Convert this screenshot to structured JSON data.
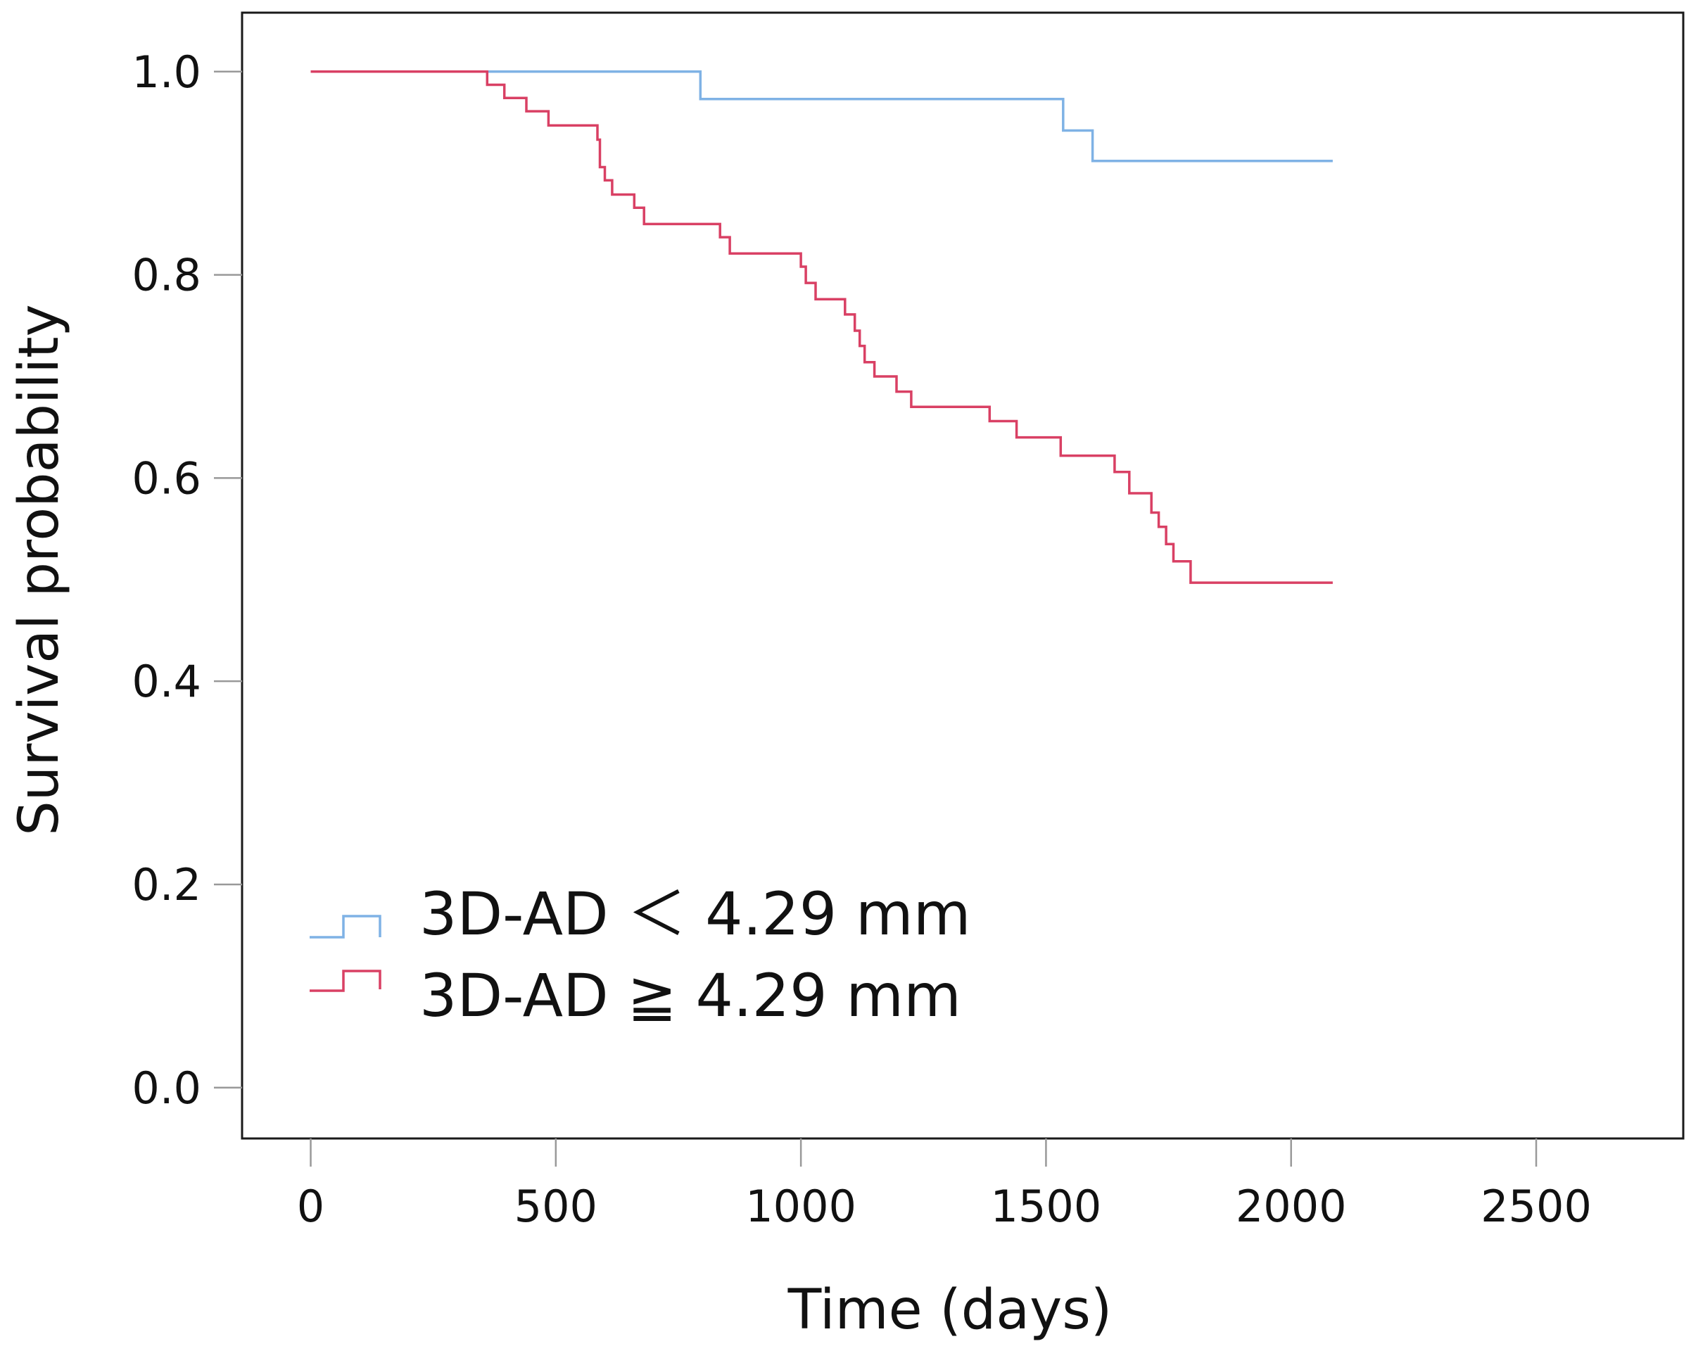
{
  "chart_data": {
    "type": "line",
    "subtype": "kaplan-meier step",
    "title": "",
    "xlabel": "Time (days)",
    "ylabel": "Survival probability",
    "xlim": [
      -140,
      2800
    ],
    "ylim": [
      -0.05,
      1.058
    ],
    "x_ticks": [
      0,
      500,
      1000,
      1500,
      2000,
      2500
    ],
    "x_tick_labels": [
      "0",
      "500",
      "1000",
      "1500",
      "2000",
      "2500"
    ],
    "y_ticks": [
      0.0,
      0.2,
      0.4,
      0.6,
      0.8,
      1.0
    ],
    "y_tick_labels": [
      "0.0",
      "0.2",
      "0.4",
      "0.6",
      "0.8",
      "1.0"
    ],
    "grid": false,
    "legend_position": "bottom-left",
    "series": [
      {
        "name": "3D-AD ＜ 4.29 mm",
        "legend_label": "3D-AD ＜ 4.29 mm",
        "color": "#7fb2e5",
        "points": [
          [
            0,
            1.0
          ],
          [
            795,
            0.973
          ],
          [
            1535,
            0.942
          ],
          [
            1595,
            0.912
          ],
          [
            2085,
            0.912
          ]
        ]
      },
      {
        "name": "3D-AD ≧ 4.29 mm",
        "legend_label": "3D-AD ≧ 4.29 mm",
        "color": "#d94064",
        "points": [
          [
            0,
            1.0
          ],
          [
            360,
            0.987
          ],
          [
            395,
            0.974
          ],
          [
            440,
            0.961
          ],
          [
            485,
            0.947
          ],
          [
            585,
            0.933
          ],
          [
            590,
            0.906
          ],
          [
            600,
            0.893
          ],
          [
            615,
            0.879
          ],
          [
            660,
            0.866
          ],
          [
            680,
            0.85
          ],
          [
            835,
            0.837
          ],
          [
            855,
            0.821
          ],
          [
            1000,
            0.808
          ],
          [
            1010,
            0.792
          ],
          [
            1030,
            0.776
          ],
          [
            1090,
            0.761
          ],
          [
            1110,
            0.745
          ],
          [
            1120,
            0.73
          ],
          [
            1130,
            0.714
          ],
          [
            1150,
            0.7
          ],
          [
            1195,
            0.685
          ],
          [
            1225,
            0.67
          ],
          [
            1385,
            0.656
          ],
          [
            1440,
            0.64
          ],
          [
            1530,
            0.622
          ],
          [
            1640,
            0.606
          ],
          [
            1670,
            0.585
          ],
          [
            1715,
            0.566
          ],
          [
            1730,
            0.552
          ],
          [
            1745,
            0.535
          ],
          [
            1760,
            0.518
          ],
          [
            1795,
            0.497
          ],
          [
            2085,
            0.497
          ]
        ]
      }
    ]
  }
}
